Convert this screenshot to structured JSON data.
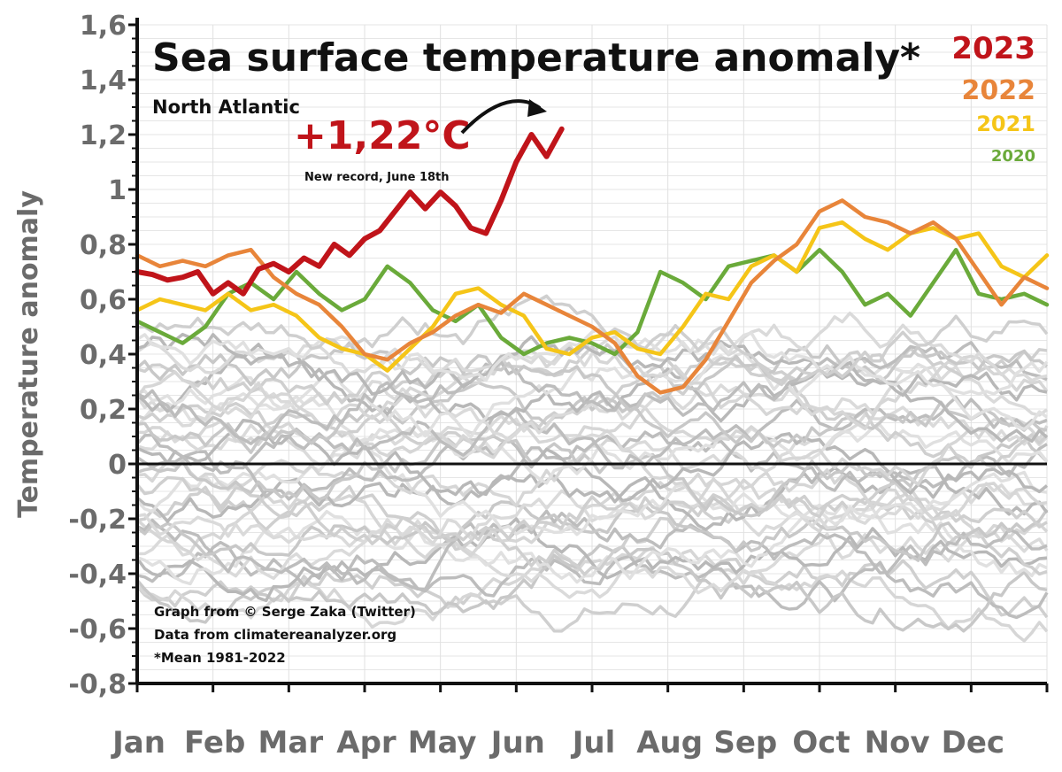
{
  "chart_data": {
    "type": "line",
    "title": "Sea surface temperature anomaly*",
    "subtitle": "North Atlantic",
    "ylabel": "Temperature anomaly",
    "xlabel": "",
    "ylim": [
      -0.8,
      1.6
    ],
    "yticks": [
      "1,6",
      "1,4",
      "1,2",
      "1",
      "0,8",
      "0,6",
      "0,4",
      "0,2",
      "0",
      "-0,2",
      "-0,4",
      "-0,6",
      "-0,8"
    ],
    "ytick_values": [
      1.6,
      1.4,
      1.2,
      1.0,
      0.8,
      0.6,
      0.4,
      0.2,
      0,
      -0.2,
      -0.4,
      -0.6,
      -0.8
    ],
    "categories": [
      "Jan",
      "Feb",
      "Mar",
      "Apr",
      "May",
      "Jun",
      "Jul",
      "Aug",
      "Sep",
      "Oct",
      "Nov",
      "Dec"
    ],
    "grid": true,
    "legend_placement": "top-right",
    "annotation": {
      "value_text": "+1,22°C",
      "note": "New record, June 18th"
    },
    "credits": [
      "Graph from © Serge Zaka (Twitter)",
      "Data from climatereanalyzer.org",
      "*Mean 1981-2022"
    ],
    "series": [
      {
        "name": "2023",
        "color": "#c0141a",
        "x": [
          0,
          0.2,
          0.4,
          0.6,
          0.8,
          1.0,
          1.2,
          1.4,
          1.6,
          1.8,
          2.0,
          2.2,
          2.4,
          2.6,
          2.8,
          3.0,
          3.2,
          3.4,
          3.6,
          3.8,
          4.0,
          4.2,
          4.4,
          4.6,
          4.8,
          5.0,
          5.2,
          5.4,
          5.6
        ],
        "y": [
          0.7,
          0.69,
          0.67,
          0.68,
          0.7,
          0.62,
          0.66,
          0.62,
          0.71,
          0.73,
          0.7,
          0.75,
          0.72,
          0.8,
          0.76,
          0.82,
          0.85,
          0.92,
          0.99,
          0.93,
          0.99,
          0.94,
          0.86,
          0.84,
          0.96,
          1.1,
          1.2,
          1.12,
          1.22
        ]
      },
      {
        "name": "2022",
        "color": "#e8853a",
        "x": [
          0,
          0.3,
          0.6,
          0.9,
          1.2,
          1.5,
          1.8,
          2.1,
          2.4,
          2.7,
          3.0,
          3.3,
          3.6,
          3.9,
          4.2,
          4.5,
          4.8,
          5.1,
          5.4,
          5.7,
          6.0,
          6.3,
          6.6,
          6.9,
          7.2,
          7.5,
          7.8,
          8.1,
          8.4,
          8.7,
          9.0,
          9.3,
          9.6,
          9.9,
          10.2,
          10.5,
          10.8,
          11.1,
          11.4,
          11.7,
          12.0
        ],
        "y": [
          0.76,
          0.72,
          0.74,
          0.72,
          0.76,
          0.78,
          0.68,
          0.62,
          0.58,
          0.5,
          0.4,
          0.38,
          0.44,
          0.48,
          0.54,
          0.58,
          0.55,
          0.62,
          0.58,
          0.54,
          0.5,
          0.44,
          0.32,
          0.26,
          0.28,
          0.38,
          0.52,
          0.66,
          0.74,
          0.8,
          0.92,
          0.96,
          0.9,
          0.88,
          0.84,
          0.88,
          0.82,
          0.7,
          0.58,
          0.68,
          0.64
        ]
      },
      {
        "name": "2021",
        "color": "#f5c518",
        "x": [
          0,
          0.3,
          0.6,
          0.9,
          1.2,
          1.5,
          1.8,
          2.1,
          2.4,
          2.7,
          3.0,
          3.3,
          3.6,
          3.9,
          4.2,
          4.5,
          4.8,
          5.1,
          5.4,
          5.7,
          6.0,
          6.3,
          6.6,
          6.9,
          7.2,
          7.5,
          7.8,
          8.1,
          8.4,
          8.7,
          9.0,
          9.3,
          9.6,
          9.9,
          10.2,
          10.5,
          10.8,
          11.1,
          11.4,
          11.7,
          12.0
        ],
        "y": [
          0.56,
          0.6,
          0.58,
          0.56,
          0.62,
          0.56,
          0.58,
          0.54,
          0.46,
          0.42,
          0.4,
          0.34,
          0.42,
          0.5,
          0.62,
          0.64,
          0.58,
          0.54,
          0.42,
          0.4,
          0.46,
          0.48,
          0.42,
          0.4,
          0.5,
          0.62,
          0.6,
          0.72,
          0.76,
          0.7,
          0.86,
          0.88,
          0.82,
          0.78,
          0.84,
          0.86,
          0.82,
          0.84,
          0.72,
          0.68,
          0.76
        ]
      },
      {
        "name": "2020",
        "color": "#6aaa3a",
        "x": [
          0,
          0.3,
          0.6,
          0.9,
          1.2,
          1.5,
          1.8,
          2.1,
          2.4,
          2.7,
          3.0,
          3.3,
          3.6,
          3.9,
          4.2,
          4.5,
          4.8,
          5.1,
          5.4,
          5.7,
          6.0,
          6.3,
          6.6,
          6.9,
          7.2,
          7.5,
          7.8,
          8.1,
          8.4,
          8.7,
          9.0,
          9.3,
          9.6,
          9.9,
          10.2,
          10.5,
          10.8,
          11.1,
          11.4,
          11.7,
          12.0
        ],
        "y": [
          0.52,
          0.48,
          0.44,
          0.5,
          0.62,
          0.66,
          0.6,
          0.7,
          0.62,
          0.56,
          0.6,
          0.72,
          0.66,
          0.56,
          0.52,
          0.58,
          0.46,
          0.4,
          0.44,
          0.46,
          0.44,
          0.4,
          0.48,
          0.7,
          0.66,
          0.6,
          0.72,
          0.74,
          0.76,
          0.7,
          0.78,
          0.7,
          0.58,
          0.62,
          0.54,
          0.66,
          0.78,
          0.62,
          0.6,
          0.62,
          0.58
        ]
      }
    ]
  }
}
